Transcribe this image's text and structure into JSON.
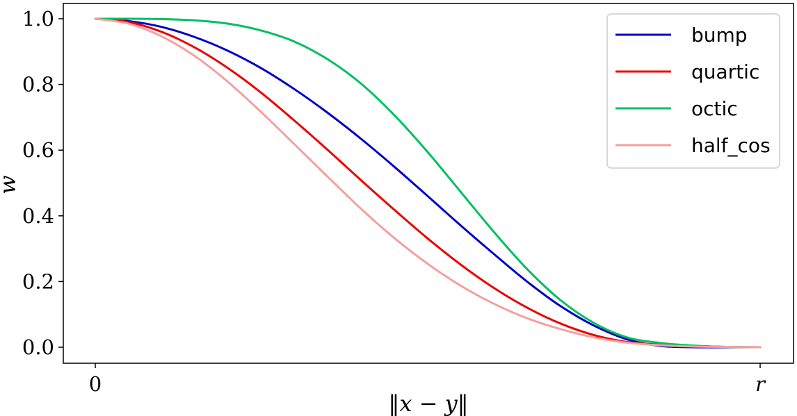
{
  "chart_data": {
    "type": "line",
    "xlabel": "‖x − y‖",
    "ylabel": "w",
    "xlim": [
      0,
      1
    ],
    "ylim": [
      0,
      1
    ],
    "x_ticks": [
      {
        "value": 0,
        "label": "0"
      },
      {
        "value": 1,
        "label": "r"
      }
    ],
    "y_ticks": [
      {
        "value": 0.0,
        "label": "0.0"
      },
      {
        "value": 0.2,
        "label": "0.2"
      },
      {
        "value": 0.4,
        "label": "0.4"
      },
      {
        "value": 0.6,
        "label": "0.6"
      },
      {
        "value": 0.8,
        "label": "0.8"
      },
      {
        "value": 1.0,
        "label": "1.0"
      }
    ],
    "grid": false,
    "legend_position": "top-right",
    "x": [
      0,
      0.05,
      0.1,
      0.15,
      0.2,
      0.25,
      0.3,
      0.35,
      0.4,
      0.45,
      0.5,
      0.55,
      0.6,
      0.65,
      0.7,
      0.75,
      0.8,
      0.85,
      0.9,
      0.95,
      1.0
    ],
    "series": [
      {
        "name": "bump",
        "color": "#0000c8",
        "values": [
          1.0,
          0.993,
          0.975,
          0.944,
          0.902,
          0.849,
          0.785,
          0.713,
          0.634,
          0.549,
          0.46,
          0.37,
          0.283,
          0.199,
          0.125,
          0.066,
          0.024,
          0.004,
          0.0,
          0.0,
          0.0
        ]
      },
      {
        "name": "quartic",
        "color": "#ee0000",
        "values": [
          1.0,
          0.99,
          0.96,
          0.912,
          0.849,
          0.774,
          0.689,
          0.6,
          0.508,
          0.418,
          0.331,
          0.251,
          0.18,
          0.12,
          0.072,
          0.037,
          0.016,
          0.008,
          0.004,
          0.001,
          0.0
        ]
      },
      {
        "name": "octic",
        "color": "#00c060",
        "values": [
          1.0,
          1.0,
          0.999,
          0.995,
          0.985,
          0.964,
          0.93,
          0.876,
          0.802,
          0.706,
          0.594,
          0.472,
          0.35,
          0.237,
          0.143,
          0.074,
          0.03,
          0.013,
          0.005,
          0.001,
          0.0
        ]
      },
      {
        "name": "half_cos",
        "color": "#f4a0a0",
        "values": [
          1.0,
          0.985,
          0.946,
          0.886,
          0.807,
          0.715,
          0.617,
          0.518,
          0.421,
          0.332,
          0.254,
          0.187,
          0.132,
          0.088,
          0.055,
          0.03,
          0.014,
          0.006,
          0.002,
          0.001,
          0.0
        ]
      }
    ]
  }
}
